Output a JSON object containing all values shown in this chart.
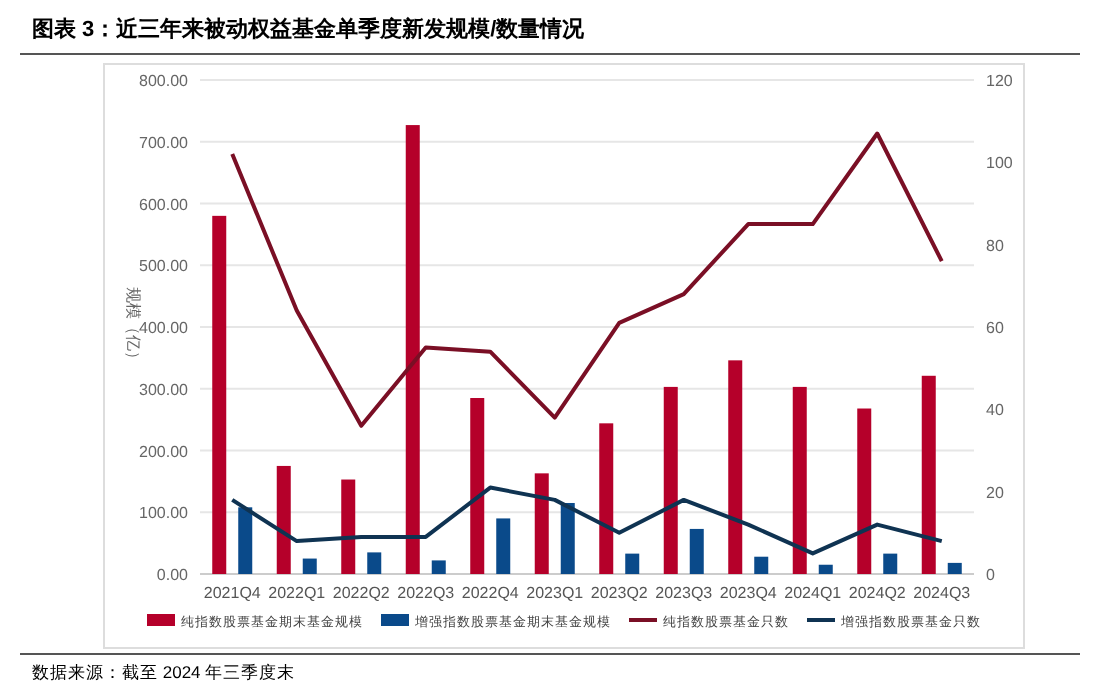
{
  "chart_data": {
    "type": "bar",
    "title": "图表 3：近三年来被动权益基金单季度新发规模/数量情况",
    "categories": [
      "2021Q4",
      "2022Q1",
      "2022Q2",
      "2022Q3",
      "2022Q4",
      "2023Q1",
      "2023Q2",
      "2023Q3",
      "2023Q4",
      "2024Q1",
      "2024Q2",
      "2024Q3"
    ],
    "series": [
      {
        "name": "纯指数股票基金期末基金规模",
        "color": "#b5002a",
        "values": [
          580,
          175,
          153,
          727,
          285,
          163,
          244,
          303,
          346,
          303,
          268,
          321
        ]
      },
      {
        "name": "增强指数股票基金期末基金规模",
        "color": "#0a4a8a",
        "values": [
          108,
          25,
          35,
          22,
          90,
          115,
          33,
          73,
          28,
          15,
          33,
          18
        ]
      },
      {
        "name": "纯指数股票基金只数",
        "type": "line",
        "axis": "y2",
        "color": "#7a0f25",
        "values": [
          102,
          64,
          36,
          55,
          54,
          38,
          61,
          68,
          85,
          85,
          107,
          76
        ]
      },
      {
        "name": "增强指数股票基金只数",
        "type": "line",
        "axis": "y2",
        "color": "#0f3352",
        "values": [
          18,
          8,
          9,
          9,
          21,
          18,
          10,
          18,
          12,
          5,
          12,
          8
        ]
      }
    ],
    "ylabel": "规模（亿）",
    "ylim": [
      0,
      800
    ],
    "yticks": [
      {
        "value": 0,
        "label": "0.00"
      },
      {
        "value": 100,
        "label": "100.00"
      },
      {
        "value": 200,
        "label": "200.00"
      },
      {
        "value": 300,
        "label": "300.00"
      },
      {
        "value": 400,
        "label": "400.00"
      },
      {
        "value": 500,
        "label": "500.00"
      },
      {
        "value": 600,
        "label": "600.00"
      },
      {
        "value": 700,
        "label": "700.00"
      },
      {
        "value": 800,
        "label": "800.00"
      }
    ],
    "y2lim": [
      0,
      120
    ],
    "y2ticks": [
      0,
      20,
      40,
      60,
      80,
      100,
      120
    ],
    "grid": "y",
    "legend": "bottom",
    "annotations": [
      "数据来源：截至 2024 年三季度末"
    ]
  }
}
